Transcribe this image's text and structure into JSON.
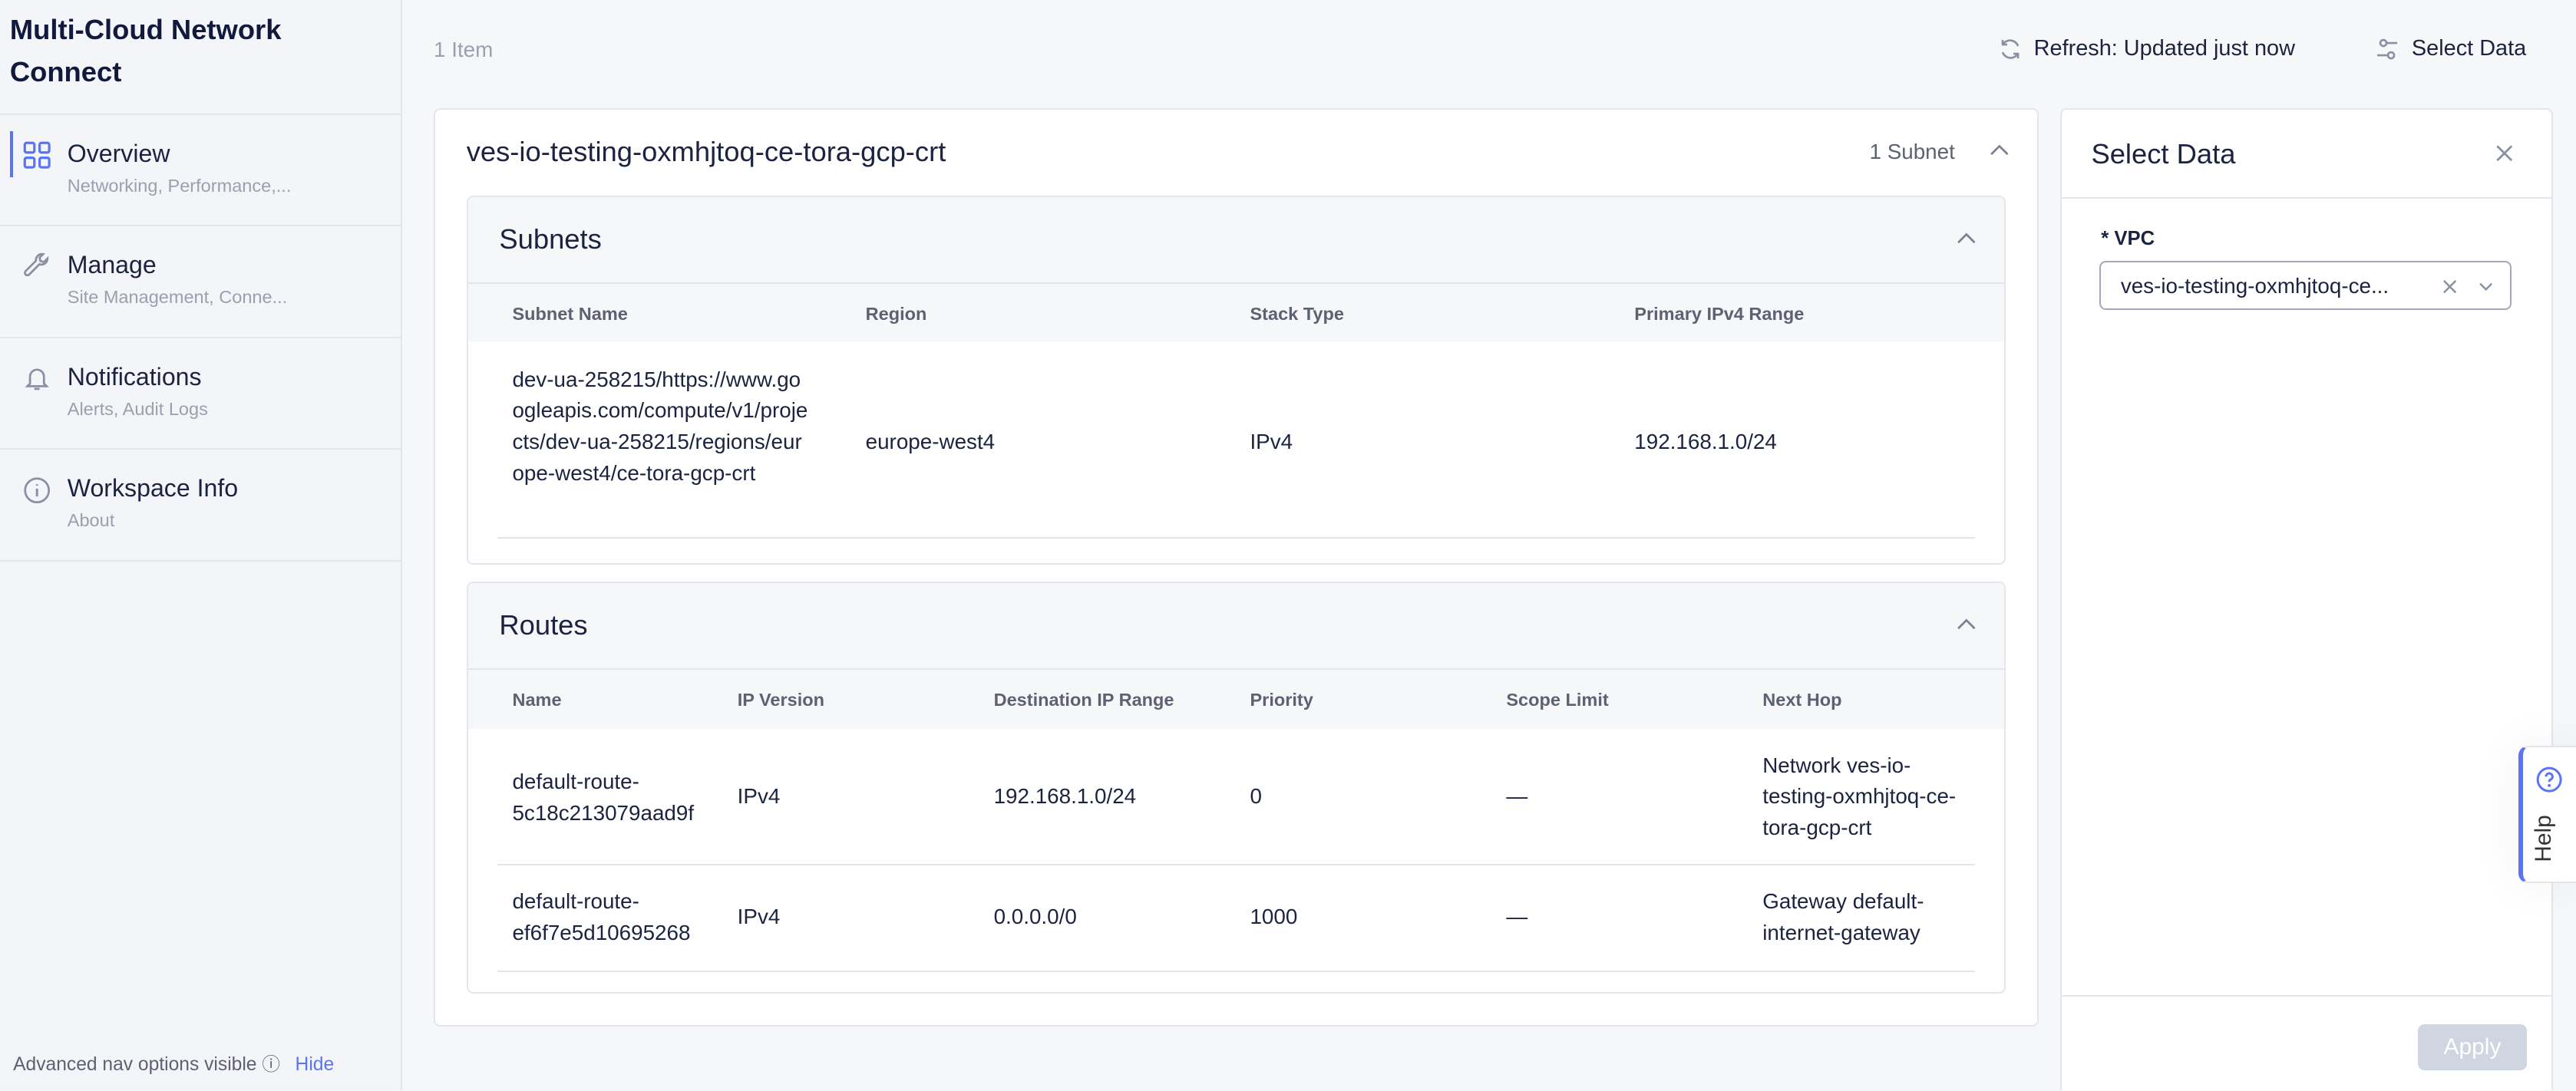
{
  "sidebar": {
    "app_title": "Multi-Cloud Network Connect",
    "items": [
      {
        "label": "Overview",
        "sub": "Networking, Performance,...",
        "icon": "grid-icon",
        "active": true
      },
      {
        "label": "Manage",
        "sub": "Site Management, Conne...",
        "icon": "wrench-icon"
      },
      {
        "label": "Notifications",
        "sub": "Alerts, Audit Logs",
        "icon": "bell-icon"
      },
      {
        "label": "Workspace Info",
        "sub": "About",
        "icon": "info-icon"
      }
    ],
    "footer": {
      "text": "Advanced nav options visible",
      "hide": "Hide"
    }
  },
  "topbar": {
    "count": "1 Item",
    "refresh": "Refresh: Updated just now",
    "select_data": "Select Data"
  },
  "card": {
    "title": "ves-io-testing-oxmhjtoq-ce-tora-gcp-crt",
    "subnet_count": "1 Subnet",
    "subnets": {
      "title": "Subnets",
      "columns": [
        "Subnet Name",
        "Region",
        "Stack Type",
        "Primary IPv4 Range"
      ],
      "rows": [
        [
          "dev-ua-258215/https://www.googleapis.com/compute/v1/projects/dev-ua-258215/regions/europe-west4/ce-tora-gcp-crt",
          "europe-west4",
          "IPv4",
          "192.168.1.0/24"
        ]
      ]
    },
    "routes": {
      "title": "Routes",
      "columns": [
        "Name",
        "IP Version",
        "Destination IP Range",
        "Priority",
        "Scope Limit",
        "Next Hop"
      ],
      "rows": [
        [
          "default-route-5c18c213079aad9f",
          "IPv4",
          "192.168.1.0/24",
          "0",
          "—",
          "Network ves-io-testing-oxmhjtoq-ce-tora-gcp-crt"
        ],
        [
          "default-route-ef6f7e5d10695268",
          "IPv4",
          "0.0.0.0/0",
          "1000",
          "—",
          "Gateway default-internet-gateway"
        ]
      ]
    }
  },
  "select_panel": {
    "title": "Select Data",
    "vpc_label": "* VPC",
    "vpc_value": "ves-io-testing-oxmhjtoq-ce...",
    "apply": "Apply"
  },
  "help": {
    "label": "Help"
  },
  "colors": {
    "accent": "#5b74f2",
    "apply_disabled": "#d0d5e2"
  }
}
